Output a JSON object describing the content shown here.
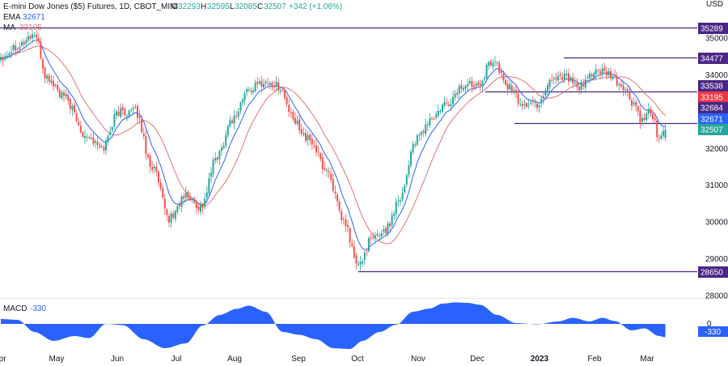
{
  "header": {
    "symbol": "E-mini Dow Jones ($5) Futures, 1D, CBOT_MINI",
    "o_label": "O",
    "o_value": "32293",
    "h_label": "H",
    "h_value": "32595",
    "l_label": "L",
    "l_value": "32085",
    "c_label": "C",
    "c_value": "32507",
    "change": "+342 (+1.06%)",
    "ema_label": "EMA",
    "ema_value": "32671",
    "ma_label": "MA",
    "ma_value": "33195",
    "currency": "USD"
  },
  "macd_panel": {
    "label": "MACD",
    "value": "-330"
  },
  "colors": {
    "up": "#26a69a",
    "down": "#ef5350",
    "level": "#4a2785",
    "ema": "#2962ff",
    "ma": "#e57373",
    "macd": "#2962ff",
    "ma_tag": "#f23645",
    "text": "#131722"
  },
  "chart_data": {
    "type": "candlestick",
    "title": "E-mini Dow Jones ($5) Futures, 1D, CBOT_MINI",
    "ylabel": "USD",
    "ylim": [
      27800,
      35450
    ],
    "y_ticks": [
      "35000",
      "34000",
      "33000",
      "32000",
      "31000",
      "30000",
      "29000",
      "28000"
    ],
    "x_ticks": [
      "Apr",
      "May",
      "Jun",
      "Jul",
      "Aug",
      "Sep",
      "Oct",
      "Nov",
      "Dec",
      "2023",
      "Feb",
      "Mar"
    ],
    "macd_ticks": [
      "0"
    ],
    "price_tags": [
      {
        "text": "35289",
        "value": 35289,
        "color": "#4a2785"
      },
      {
        "text": "34477",
        "value": 34477,
        "color": "#4a2785"
      },
      {
        "text": "33538",
        "value": 33538,
        "color": "#4a2785"
      },
      {
        "text": "33195",
        "value": 33195,
        "color": "#f23645"
      },
      {
        "text": "32684",
        "value": 32684,
        "color": "#4a2785"
      },
      {
        "text": "32671",
        "value": 32671,
        "color": "#2962ff"
      },
      {
        "text": "32507",
        "value": 32507,
        "color": "#26a69a"
      },
      {
        "text": "28650",
        "value": 28650,
        "color": "#4a2785"
      }
    ],
    "macd_last": "-330",
    "horizontal_levels": [
      {
        "value": 35289,
        "from": "Apr",
        "to": "end"
      },
      {
        "value": 34477,
        "from": "2023",
        "to": "end"
      },
      {
        "value": 33538,
        "from": "Dec",
        "to": "end"
      },
      {
        "value": 32684,
        "from": "Dec",
        "to": "end"
      },
      {
        "value": 28650,
        "from": "Oct",
        "to": "end"
      }
    ],
    "price_anchors": [
      [
        0,
        34500
      ],
      [
        8,
        34800
      ],
      [
        16,
        35100
      ],
      [
        22,
        33900
      ],
      [
        30,
        33400
      ],
      [
        40,
        32400
      ],
      [
        48,
        32000
      ],
      [
        56,
        33000
      ],
      [
        64,
        33000
      ],
      [
        72,
        31500
      ],
      [
        80,
        30100
      ],
      [
        88,
        30700
      ],
      [
        95,
        30400
      ],
      [
        103,
        31800
      ],
      [
        110,
        32800
      ],
      [
        118,
        33600
      ],
      [
        125,
        33800
      ],
      [
        132,
        33700
      ],
      [
        140,
        32700
      ],
      [
        147,
        32200
      ],
      [
        155,
        31400
      ],
      [
        163,
        30000
      ],
      [
        170,
        28800
      ],
      [
        176,
        29500
      ],
      [
        183,
        29800
      ],
      [
        190,
        30700
      ],
      [
        197,
        32200
      ],
      [
        205,
        32800
      ],
      [
        212,
        33200
      ],
      [
        220,
        33700
      ],
      [
        227,
        33800
      ],
      [
        234,
        34400
      ],
      [
        241,
        33700
      ],
      [
        248,
        33200
      ],
      [
        255,
        33200
      ],
      [
        262,
        33900
      ],
      [
        268,
        34000
      ],
      [
        275,
        33600
      ],
      [
        282,
        34100
      ],
      [
        289,
        34000
      ],
      [
        295,
        33700
      ],
      [
        301,
        33200
      ],
      [
        305,
        32700
      ],
      [
        309,
        33000
      ],
      [
        313,
        32300
      ],
      [
        316,
        32507
      ]
    ],
    "macd_anchors": [
      [
        0,
        120
      ],
      [
        8,
        100
      ],
      [
        16,
        -200
      ],
      [
        25,
        -420
      ],
      [
        35,
        -300
      ],
      [
        42,
        -350
      ],
      [
        50,
        0
      ],
      [
        58,
        -30
      ],
      [
        68,
        -380
      ],
      [
        78,
        -600
      ],
      [
        88,
        -480
      ],
      [
        96,
        -40
      ],
      [
        104,
        220
      ],
      [
        112,
        370
      ],
      [
        118,
        450
      ],
      [
        126,
        300
      ],
      [
        134,
        -200
      ],
      [
        142,
        -270
      ],
      [
        150,
        -380
      ],
      [
        158,
        -600
      ],
      [
        166,
        -620
      ],
      [
        172,
        -420
      ],
      [
        180,
        -200
      ],
      [
        188,
        -20
      ],
      [
        196,
        300
      ],
      [
        204,
        380
      ],
      [
        210,
        500
      ],
      [
        216,
        530
      ],
      [
        222,
        520
      ],
      [
        228,
        470
      ],
      [
        236,
        220
      ],
      [
        245,
        20
      ],
      [
        255,
        -10
      ],
      [
        265,
        60
      ],
      [
        272,
        150
      ],
      [
        280,
        60
      ],
      [
        286,
        150
      ],
      [
        292,
        70
      ],
      [
        300,
        -160
      ],
      [
        306,
        -110
      ],
      [
        313,
        -300
      ],
      [
        316,
        -330
      ]
    ]
  }
}
